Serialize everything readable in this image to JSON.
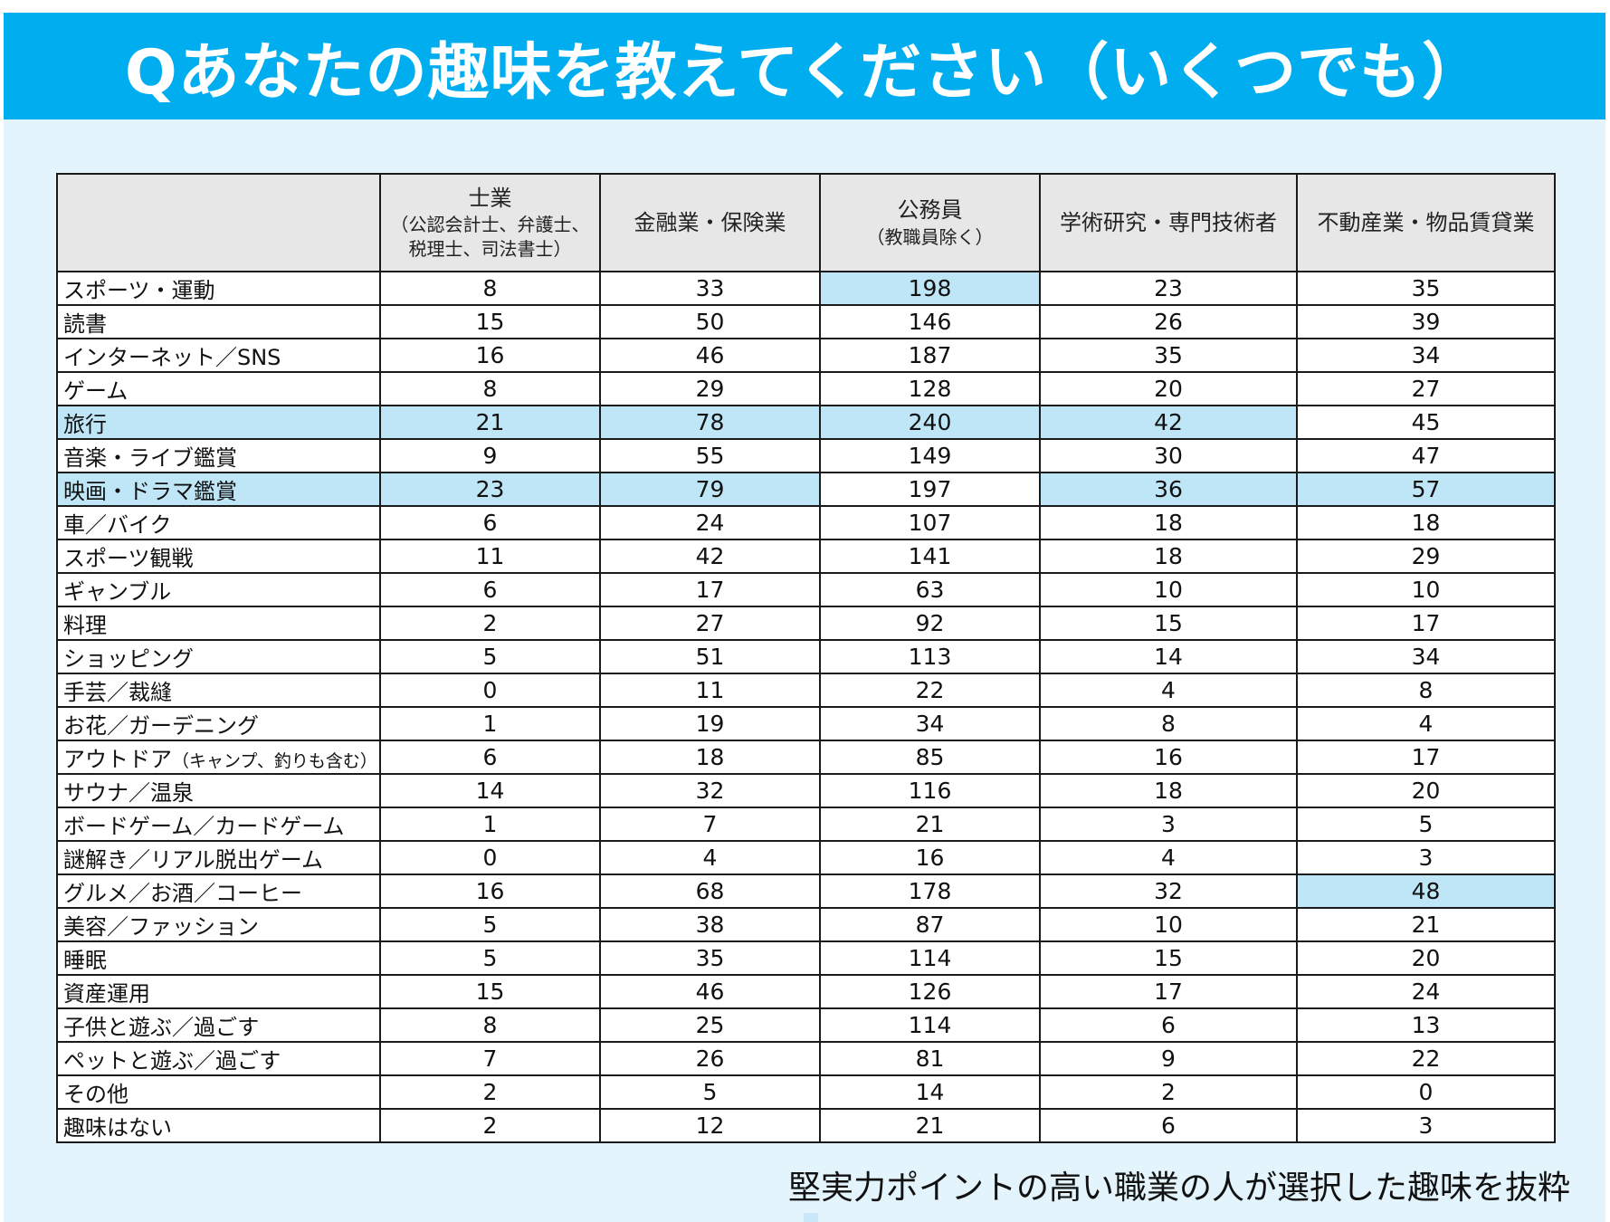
{
  "title": "Qあなたの趣味を教えてください（いくつでも）",
  "footnote": "堅実力ポイントの高い職業の人が選択した趣味を抜粋",
  "colors": {
    "header_bg": "#00aeef",
    "panel_bg": "#e3f4fc",
    "highlight": "#bfe6f6",
    "header_cell": "#e7e7e7"
  },
  "columns": [
    {
      "main": "士業",
      "sub1": "（公認会計士、弁護士、",
      "sub2": "税理士、司法書士）"
    },
    {
      "main": "金融業・保険業",
      "sub1": "",
      "sub2": ""
    },
    {
      "main": "公務員",
      "sub1": "（教職員除く）",
      "sub2": ""
    },
    {
      "main": "学術研究・専門技術者",
      "sub1": "",
      "sub2": ""
    },
    {
      "main": "不動産業・物品賃貸業",
      "sub1": "",
      "sub2": ""
    }
  ],
  "rows": [
    {
      "label": "スポーツ・運動",
      "note": "",
      "values": [
        "8",
        "33",
        "198",
        "23",
        "35"
      ],
      "highlight": [
        false,
        false,
        true,
        false,
        false
      ]
    },
    {
      "label": "読書",
      "note": "",
      "values": [
        "15",
        "50",
        "146",
        "26",
        "39"
      ],
      "highlight": [
        false,
        false,
        false,
        false,
        false
      ]
    },
    {
      "label": "インターネット／SNS",
      "note": "",
      "values": [
        "16",
        "46",
        "187",
        "35",
        "34"
      ],
      "highlight": [
        false,
        false,
        false,
        false,
        false
      ]
    },
    {
      "label": "ゲーム",
      "note": "",
      "values": [
        "8",
        "29",
        "128",
        "20",
        "27"
      ],
      "highlight": [
        false,
        false,
        false,
        false,
        false
      ]
    },
    {
      "label": "旅行",
      "note": "",
      "values": [
        "21",
        "78",
        "240",
        "42",
        "45"
      ],
      "highlight": [
        true,
        true,
        true,
        true,
        false
      ],
      "label_highlight": true
    },
    {
      "label": "音楽・ライブ鑑賞",
      "note": "",
      "values": [
        "9",
        "55",
        "149",
        "30",
        "47"
      ],
      "highlight": [
        false,
        false,
        false,
        false,
        false
      ]
    },
    {
      "label": "映画・ドラマ鑑賞",
      "note": "",
      "values": [
        "23",
        "79",
        "197",
        "36",
        "57"
      ],
      "highlight": [
        true,
        true,
        false,
        true,
        true
      ],
      "label_highlight": true
    },
    {
      "label": "車／バイク",
      "note": "",
      "values": [
        "6",
        "24",
        "107",
        "18",
        "18"
      ],
      "highlight": [
        false,
        false,
        false,
        false,
        false
      ]
    },
    {
      "label": "スポーツ観戦",
      "note": "",
      "values": [
        "11",
        "42",
        "141",
        "18",
        "29"
      ],
      "highlight": [
        false,
        false,
        false,
        false,
        false
      ]
    },
    {
      "label": "ギャンブル",
      "note": "",
      "values": [
        "6",
        "17",
        "63",
        "10",
        "10"
      ],
      "highlight": [
        false,
        false,
        false,
        false,
        false
      ]
    },
    {
      "label": "料理",
      "note": "",
      "values": [
        "2",
        "27",
        "92",
        "15",
        "17"
      ],
      "highlight": [
        false,
        false,
        false,
        false,
        false
      ]
    },
    {
      "label": "ショッピング",
      "note": "",
      "values": [
        "5",
        "51",
        "113",
        "14",
        "34"
      ],
      "highlight": [
        false,
        false,
        false,
        false,
        false
      ]
    },
    {
      "label": "手芸／裁縫",
      "note": "",
      "values": [
        "0",
        "11",
        "22",
        "4",
        "8"
      ],
      "highlight": [
        false,
        false,
        false,
        false,
        false
      ]
    },
    {
      "label": "お花／ガーデニング",
      "note": "",
      "values": [
        "1",
        "19",
        "34",
        "8",
        "4"
      ],
      "highlight": [
        false,
        false,
        false,
        false,
        false
      ]
    },
    {
      "label": "アウトドア",
      "note": "（キャンプ、釣りも含む）",
      "values": [
        "6",
        "18",
        "85",
        "16",
        "17"
      ],
      "highlight": [
        false,
        false,
        false,
        false,
        false
      ]
    },
    {
      "label": "サウナ／温泉",
      "note": "",
      "values": [
        "14",
        "32",
        "116",
        "18",
        "20"
      ],
      "highlight": [
        false,
        false,
        false,
        false,
        false
      ]
    },
    {
      "label": "ボードゲーム／カードゲーム",
      "note": "",
      "values": [
        "1",
        "7",
        "21",
        "3",
        "5"
      ],
      "highlight": [
        false,
        false,
        false,
        false,
        false
      ]
    },
    {
      "label": "謎解き／リアル脱出ゲーム",
      "note": "",
      "values": [
        "0",
        "4",
        "16",
        "4",
        "3"
      ],
      "highlight": [
        false,
        false,
        false,
        false,
        false
      ]
    },
    {
      "label": "グルメ／お酒／コーヒー",
      "note": "",
      "values": [
        "16",
        "68",
        "178",
        "32",
        "48"
      ],
      "highlight": [
        false,
        false,
        false,
        false,
        true
      ]
    },
    {
      "label": "美容／ファッション",
      "note": "",
      "values": [
        "5",
        "38",
        "87",
        "10",
        "21"
      ],
      "highlight": [
        false,
        false,
        false,
        false,
        false
      ]
    },
    {
      "label": "睡眠",
      "note": "",
      "values": [
        "5",
        "35",
        "114",
        "15",
        "20"
      ],
      "highlight": [
        false,
        false,
        false,
        false,
        false
      ]
    },
    {
      "label": "資産運用",
      "note": "",
      "values": [
        "15",
        "46",
        "126",
        "17",
        "24"
      ],
      "highlight": [
        false,
        false,
        false,
        false,
        false
      ]
    },
    {
      "label": "子供と遊ぶ／過ごす",
      "note": "",
      "values": [
        "8",
        "25",
        "114",
        "6",
        "13"
      ],
      "highlight": [
        false,
        false,
        false,
        false,
        false
      ]
    },
    {
      "label": "ペットと遊ぶ／過ごす",
      "note": "",
      "values": [
        "7",
        "26",
        "81",
        "9",
        "22"
      ],
      "highlight": [
        false,
        false,
        false,
        false,
        false
      ]
    },
    {
      "label": "その他",
      "note": "",
      "values": [
        "2",
        "5",
        "14",
        "2",
        "0"
      ],
      "highlight": [
        false,
        false,
        false,
        false,
        false
      ]
    },
    {
      "label": "趣味はない",
      "note": "",
      "values": [
        "2",
        "12",
        "21",
        "6",
        "3"
      ],
      "highlight": [
        false,
        false,
        false,
        false,
        false
      ]
    }
  ]
}
